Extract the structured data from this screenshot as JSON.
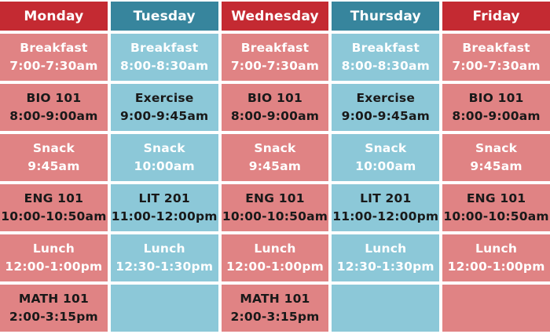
{
  "palette": {
    "header_red": "#c42a32",
    "header_teal": "#37859d",
    "cell_red": "#e08384",
    "cell_teal": "#8cc8d8",
    "text_light": "#ffffff",
    "text_dark": "#191919",
    "gap_white": "#ffffff"
  },
  "schedule": {
    "days": [
      {
        "label": "Monday",
        "theme": "red",
        "cells": [
          {
            "title": "Breakfast",
            "time": "7:00-7:30am"
          },
          {
            "title": "BIO 101",
            "time": "8:00-9:00am"
          },
          {
            "title": "Snack",
            "time": "9:45am"
          },
          {
            "title": "ENG 101",
            "time": "10:00-10:50am"
          },
          {
            "title": "Lunch",
            "time": "12:00-1:00pm"
          },
          {
            "title": "MATH 101",
            "time": "2:00-3:15pm"
          }
        ]
      },
      {
        "label": "Tuesday",
        "theme": "teal",
        "cells": [
          {
            "title": "Breakfast",
            "time": "8:00-8:30am"
          },
          {
            "title": "Exercise",
            "time": "9:00-9:45am"
          },
          {
            "title": "Snack",
            "time": "10:00am"
          },
          {
            "title": "LIT 201",
            "time": "11:00-12:00pm"
          },
          {
            "title": "Lunch",
            "time": "12:30-1:30pm"
          },
          {
            "title": "",
            "time": ""
          }
        ]
      },
      {
        "label": "Wednesday",
        "theme": "red",
        "cells": [
          {
            "title": "Breakfast",
            "time": "7:00-7:30am"
          },
          {
            "title": "BIO 101",
            "time": "8:00-9:00am"
          },
          {
            "title": "Snack",
            "time": "9:45am"
          },
          {
            "title": "ENG 101",
            "time": "10:00-10:50am"
          },
          {
            "title": "Lunch",
            "time": "12:00-1:00pm"
          },
          {
            "title": "MATH 101",
            "time": "2:00-3:15pm"
          }
        ]
      },
      {
        "label": "Thursday",
        "theme": "teal",
        "cells": [
          {
            "title": "Breakfast",
            "time": "8:00-8:30am"
          },
          {
            "title": "Exercise",
            "time": "9:00-9:45am"
          },
          {
            "title": "Snack",
            "time": "10:00am"
          },
          {
            "title": "LIT 201",
            "time": "11:00-12:00pm"
          },
          {
            "title": "Lunch",
            "time": "12:30-1:30pm"
          },
          {
            "title": "",
            "time": ""
          }
        ]
      },
      {
        "label": "Friday",
        "theme": "red",
        "cells": [
          {
            "title": "Breakfast",
            "time": "7:00-7:30am"
          },
          {
            "title": "BIO 101",
            "time": "8:00-9:00am"
          },
          {
            "title": "Snack",
            "time": "9:45am"
          },
          {
            "title": "ENG 101",
            "time": "10:00-10:50am"
          },
          {
            "title": "Lunch",
            "time": "12:00-1:00pm"
          },
          {
            "title": "",
            "time": ""
          }
        ]
      }
    ]
  }
}
